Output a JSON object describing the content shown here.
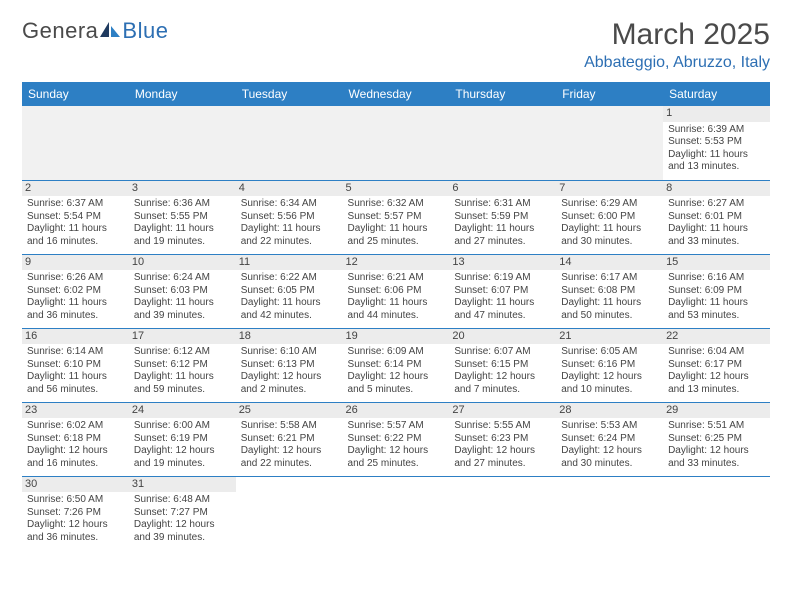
{
  "logo": {
    "part1": "Genera",
    "part2": "Blue"
  },
  "title": "March 2025",
  "location": "Abbateggio, Abruzzo, Italy",
  "colors": {
    "header_bg": "#2d7fc4",
    "header_text": "#ffffff",
    "accent": "#2d6fb3",
    "text": "#444444",
    "daynum_bg": "#ececec",
    "border": "#2d7fc4"
  },
  "weekdays": [
    "Sunday",
    "Monday",
    "Tuesday",
    "Wednesday",
    "Thursday",
    "Friday",
    "Saturday"
  ],
  "weeks": [
    [
      null,
      null,
      null,
      null,
      null,
      null,
      {
        "n": "1",
        "sr": "Sunrise: 6:39 AM",
        "ss": "Sunset: 5:53 PM",
        "dl": "Daylight: 11 hours and 13 minutes."
      }
    ],
    [
      {
        "n": "2",
        "sr": "Sunrise: 6:37 AM",
        "ss": "Sunset: 5:54 PM",
        "dl": "Daylight: 11 hours and 16 minutes."
      },
      {
        "n": "3",
        "sr": "Sunrise: 6:36 AM",
        "ss": "Sunset: 5:55 PM",
        "dl": "Daylight: 11 hours and 19 minutes."
      },
      {
        "n": "4",
        "sr": "Sunrise: 6:34 AM",
        "ss": "Sunset: 5:56 PM",
        "dl": "Daylight: 11 hours and 22 minutes."
      },
      {
        "n": "5",
        "sr": "Sunrise: 6:32 AM",
        "ss": "Sunset: 5:57 PM",
        "dl": "Daylight: 11 hours and 25 minutes."
      },
      {
        "n": "6",
        "sr": "Sunrise: 6:31 AM",
        "ss": "Sunset: 5:59 PM",
        "dl": "Daylight: 11 hours and 27 minutes."
      },
      {
        "n": "7",
        "sr": "Sunrise: 6:29 AM",
        "ss": "Sunset: 6:00 PM",
        "dl": "Daylight: 11 hours and 30 minutes."
      },
      {
        "n": "8",
        "sr": "Sunrise: 6:27 AM",
        "ss": "Sunset: 6:01 PM",
        "dl": "Daylight: 11 hours and 33 minutes."
      }
    ],
    [
      {
        "n": "9",
        "sr": "Sunrise: 6:26 AM",
        "ss": "Sunset: 6:02 PM",
        "dl": "Daylight: 11 hours and 36 minutes."
      },
      {
        "n": "10",
        "sr": "Sunrise: 6:24 AM",
        "ss": "Sunset: 6:03 PM",
        "dl": "Daylight: 11 hours and 39 minutes."
      },
      {
        "n": "11",
        "sr": "Sunrise: 6:22 AM",
        "ss": "Sunset: 6:05 PM",
        "dl": "Daylight: 11 hours and 42 minutes."
      },
      {
        "n": "12",
        "sr": "Sunrise: 6:21 AM",
        "ss": "Sunset: 6:06 PM",
        "dl": "Daylight: 11 hours and 44 minutes."
      },
      {
        "n": "13",
        "sr": "Sunrise: 6:19 AM",
        "ss": "Sunset: 6:07 PM",
        "dl": "Daylight: 11 hours and 47 minutes."
      },
      {
        "n": "14",
        "sr": "Sunrise: 6:17 AM",
        "ss": "Sunset: 6:08 PM",
        "dl": "Daylight: 11 hours and 50 minutes."
      },
      {
        "n": "15",
        "sr": "Sunrise: 6:16 AM",
        "ss": "Sunset: 6:09 PM",
        "dl": "Daylight: 11 hours and 53 minutes."
      }
    ],
    [
      {
        "n": "16",
        "sr": "Sunrise: 6:14 AM",
        "ss": "Sunset: 6:10 PM",
        "dl": "Daylight: 11 hours and 56 minutes."
      },
      {
        "n": "17",
        "sr": "Sunrise: 6:12 AM",
        "ss": "Sunset: 6:12 PM",
        "dl": "Daylight: 11 hours and 59 minutes."
      },
      {
        "n": "18",
        "sr": "Sunrise: 6:10 AM",
        "ss": "Sunset: 6:13 PM",
        "dl": "Daylight: 12 hours and 2 minutes."
      },
      {
        "n": "19",
        "sr": "Sunrise: 6:09 AM",
        "ss": "Sunset: 6:14 PM",
        "dl": "Daylight: 12 hours and 5 minutes."
      },
      {
        "n": "20",
        "sr": "Sunrise: 6:07 AM",
        "ss": "Sunset: 6:15 PM",
        "dl": "Daylight: 12 hours and 7 minutes."
      },
      {
        "n": "21",
        "sr": "Sunrise: 6:05 AM",
        "ss": "Sunset: 6:16 PM",
        "dl": "Daylight: 12 hours and 10 minutes."
      },
      {
        "n": "22",
        "sr": "Sunrise: 6:04 AM",
        "ss": "Sunset: 6:17 PM",
        "dl": "Daylight: 12 hours and 13 minutes."
      }
    ],
    [
      {
        "n": "23",
        "sr": "Sunrise: 6:02 AM",
        "ss": "Sunset: 6:18 PM",
        "dl": "Daylight: 12 hours and 16 minutes."
      },
      {
        "n": "24",
        "sr": "Sunrise: 6:00 AM",
        "ss": "Sunset: 6:19 PM",
        "dl": "Daylight: 12 hours and 19 minutes."
      },
      {
        "n": "25",
        "sr": "Sunrise: 5:58 AM",
        "ss": "Sunset: 6:21 PM",
        "dl": "Daylight: 12 hours and 22 minutes."
      },
      {
        "n": "26",
        "sr": "Sunrise: 5:57 AM",
        "ss": "Sunset: 6:22 PM",
        "dl": "Daylight: 12 hours and 25 minutes."
      },
      {
        "n": "27",
        "sr": "Sunrise: 5:55 AM",
        "ss": "Sunset: 6:23 PM",
        "dl": "Daylight: 12 hours and 27 minutes."
      },
      {
        "n": "28",
        "sr": "Sunrise: 5:53 AM",
        "ss": "Sunset: 6:24 PM",
        "dl": "Daylight: 12 hours and 30 minutes."
      },
      {
        "n": "29",
        "sr": "Sunrise: 5:51 AM",
        "ss": "Sunset: 6:25 PM",
        "dl": "Daylight: 12 hours and 33 minutes."
      }
    ],
    [
      {
        "n": "30",
        "sr": "Sunrise: 6:50 AM",
        "ss": "Sunset: 7:26 PM",
        "dl": "Daylight: 12 hours and 36 minutes."
      },
      {
        "n": "31",
        "sr": "Sunrise: 6:48 AM",
        "ss": "Sunset: 7:27 PM",
        "dl": "Daylight: 12 hours and 39 minutes."
      },
      null,
      null,
      null,
      null,
      null
    ]
  ]
}
